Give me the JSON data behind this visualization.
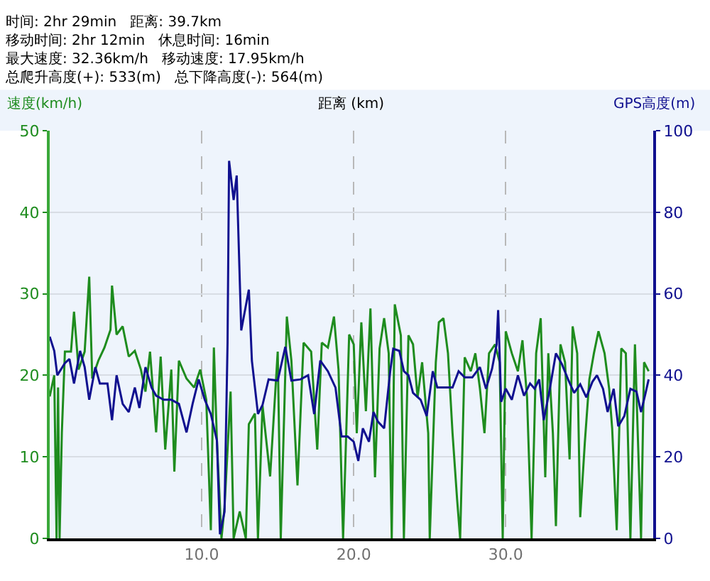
{
  "chart_data": {
    "type": "line",
    "title": "时间: 2hr 29min   距离: 39.7km\n移动时间: 2hr 12min   休息时间: 16min\n最大速度: 32.36km/h   移动速度: 17.95km/h\n总爬升高度(+): 533(m)   总下降高度(-): 564(m)",
    "xlabel": "距离 (km)",
    "ylabel": "速度(km/h)",
    "y2label": "GPS高度(m)",
    "xlim": [
      0,
      39.7
    ],
    "xticks": [
      {
        "value": 10,
        "label": "10.0"
      },
      {
        "value": 20,
        "label": "20.0"
      },
      {
        "value": 30,
        "label": "30.0"
      }
    ],
    "ylim": [
      0,
      50
    ],
    "yticks": [
      0,
      10,
      20,
      30,
      40,
      50
    ],
    "y2lim": [
      0,
      100
    ],
    "y2ticks": [
      0,
      20,
      40,
      60,
      80,
      100
    ],
    "grid": true,
    "line_style": "solid",
    "marker": "none",
    "series": [
      {
        "color": "#1e8c1e",
        "x": [
          0,
          0.3,
          0.45,
          0.55,
          0.65,
          0.8,
          1.0,
          1.4,
          1.6,
          1.9,
          2.3,
          2.6,
          2.8,
          3.2,
          3.6,
          4.0,
          4.1,
          4.4,
          4.8,
          5.2,
          5.6,
          6.0,
          6.3,
          6.6,
          7.0,
          7.3,
          7.6,
          8.0,
          8.2,
          8.5,
          9.0,
          9.5,
          9.9,
          10.3,
          10.6,
          10.8,
          11.0,
          11.3,
          11.5,
          11.9,
          12.1,
          12.5,
          12.9,
          13.1,
          13.5,
          13.7,
          14.0,
          14.5,
          15.0,
          15.2,
          15.6,
          15.9,
          16.3,
          16.7,
          17.2,
          17.6,
          17.9,
          18.3,
          18.7,
          19.0,
          19.3,
          19.7,
          20.0,
          20.2,
          20.5,
          20.8,
          21.1,
          21.4,
          21.7,
          22.0,
          22.3,
          22.5,
          22.7,
          23.1,
          23.3,
          23.6,
          23.9,
          24.2,
          24.5,
          24.9,
          25.0,
          25.4,
          25.6,
          25.9,
          26.2,
          26.5,
          26.8,
          27.0,
          27.3,
          27.7,
          28.0,
          28.3,
          28.6,
          28.9,
          29.3,
          29.6,
          29.8,
          30.0,
          30.4,
          30.8,
          31.1,
          31.4,
          31.7,
          32.0,
          32.3,
          32.6,
          32.8,
          33.1,
          33.3,
          33.6,
          33.9,
          34.2,
          34.4,
          34.7,
          34.9,
          35.2,
          35.5,
          35.8,
          36.1,
          36.5,
          36.8,
          37.0,
          37.3,
          37.6,
          37.9,
          38.2,
          38.5,
          38.9,
          39.1,
          39.4
        ],
        "values": [
          17.4,
          20,
          0,
          18.5,
          0,
          13,
          22.9,
          22.9,
          27.8,
          20.7,
          22.9,
          32.1,
          19.6,
          21.8,
          23.4,
          25.6,
          31,
          25,
          26,
          22.3,
          23,
          20.7,
          18,
          22.9,
          13,
          22.3,
          10.9,
          20.7,
          8.2,
          21.8,
          19.6,
          18.5,
          20.7,
          17,
          1,
          23.4,
          12,
          0,
          3.8,
          18,
          0,
          3.3,
          0,
          14,
          15.3,
          0,
          16.3,
          7.6,
          22.9,
          0,
          27.2,
          21.8,
          6.5,
          24,
          22.9,
          10.9,
          24,
          23.4,
          27.2,
          20.7,
          0,
          25,
          23.8,
          12.9,
          26.5,
          15.6,
          28.2,
          7.5,
          23.3,
          27,
          22.7,
          0,
          28.7,
          24.9,
          0,
          24.9,
          23.8,
          17.3,
          21.6,
          12.9,
          0,
          21.6,
          26.5,
          27,
          22.7,
          12.9,
          4.8,
          0,
          22.2,
          20.5,
          22.7,
          18.4,
          12.9,
          22.7,
          23.8,
          21.6,
          0,
          25.4,
          22.7,
          20.5,
          24.3,
          17.3,
          0,
          22.7,
          27,
          7.5,
          22.7,
          12.9,
          1.5,
          23.8,
          21.6,
          9.7,
          26,
          22.7,
          2.6,
          11.7,
          19.5,
          22.7,
          25.4,
          22.7,
          18.4,
          13.5,
          1,
          23.3,
          22.7,
          0,
          23.8,
          0,
          21.6,
          20.5
        ]
      },
      {
        "color": "#10108f",
        "axis": "y2",
        "x": [
          0,
          0.3,
          0.5,
          1.0,
          1.3,
          1.6,
          2.0,
          2.3,
          2.6,
          3.0,
          3.3,
          3.8,
          4.1,
          4.4,
          4.8,
          5.2,
          5.6,
          5.9,
          6.3,
          6.7,
          7.0,
          7.5,
          8.0,
          8.5,
          9.0,
          9.4,
          9.8,
          10.2,
          10.6,
          11.0,
          11.2,
          11.5,
          11.7,
          11.8,
          12.1,
          12.3,
          12.6,
          12.9,
          13.1,
          13.3,
          13.7,
          14.0,
          14.4,
          15.0,
          15.5,
          15.9,
          16.5,
          17.0,
          17.4,
          17.8,
          18.3,
          18.8,
          19.2,
          19.6,
          20.0,
          20.3,
          20.6,
          21.0,
          21.3,
          21.6,
          22.0,
          22.4,
          22.6,
          23.0,
          23.3,
          23.6,
          23.9,
          24.4,
          24.8,
          25.2,
          25.5,
          26.0,
          26.5,
          26.9,
          27.3,
          27.8,
          28.3,
          28.7,
          29.1,
          29.4,
          29.5,
          29.7,
          30.0,
          30.4,
          30.8,
          31.2,
          31.6,
          31.9,
          32.2,
          32.5,
          32.9,
          33.3,
          33.7,
          34.1,
          34.5,
          34.9,
          35.3,
          35.7,
          36.0,
          36.4,
          36.7,
          37.1,
          37.4,
          37.8,
          38.2,
          38.6,
          38.9,
          39.2,
          39.4
        ],
        "values": [
          49.5,
          46,
          40,
          43,
          44,
          38,
          46,
          42,
          34,
          42,
          38,
          38,
          29,
          40,
          33,
          31,
          37,
          32,
          42,
          37,
          35,
          34,
          34,
          33,
          26,
          33,
          39,
          34,
          30.5,
          24,
          1,
          6.5,
          48,
          92.6,
          83,
          89,
          51,
          57,
          61,
          43.6,
          30.5,
          32.7,
          39,
          38.7,
          47,
          38.7,
          39,
          40,
          30.5,
          43.6,
          41,
          37,
          25,
          25,
          23.7,
          19,
          27,
          23.7,
          31,
          28.6,
          27,
          41,
          46.5,
          46,
          41,
          40,
          35.7,
          34,
          30,
          41,
          37,
          37,
          37,
          41,
          39.5,
          39.5,
          42,
          36.7,
          41.6,
          47.6,
          56,
          33.5,
          36.7,
          34,
          40,
          35,
          38,
          36.7,
          39,
          29,
          36.7,
          45.4,
          42.7,
          39,
          35.7,
          37.8,
          34.6,
          38.4,
          40,
          36.7,
          31,
          36.7,
          27.5,
          30,
          36.7,
          36,
          31,
          35.7,
          39
        ]
      }
    ]
  }
}
